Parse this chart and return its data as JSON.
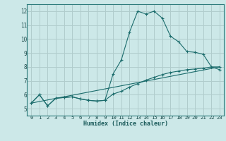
{
  "background_color": "#cce8e8",
  "grid_color": "#b0cccc",
  "line_color": "#1a6b6b",
  "xlabel": "Humidex (Indice chaleur)",
  "xlim": [
    -0.5,
    23.5
  ],
  "ylim": [
    4.5,
    12.5
  ],
  "xticks": [
    0,
    1,
    2,
    3,
    4,
    5,
    6,
    7,
    8,
    9,
    10,
    11,
    12,
    13,
    14,
    15,
    16,
    17,
    18,
    19,
    20,
    21,
    22,
    23
  ],
  "yticks": [
    5,
    6,
    7,
    8,
    9,
    10,
    11,
    12
  ],
  "series1_x": [
    0,
    1,
    2,
    3,
    4,
    5,
    6,
    7,
    8,
    9,
    10,
    11,
    12,
    13,
    14,
    15,
    16,
    17,
    18,
    19,
    20,
    21,
    22,
    23
  ],
  "series1_y": [
    5.4,
    6.0,
    5.2,
    5.75,
    5.8,
    5.85,
    5.7,
    5.6,
    5.55,
    5.6,
    7.5,
    8.5,
    10.5,
    12.0,
    11.8,
    12.0,
    11.5,
    10.2,
    9.8,
    9.1,
    9.05,
    8.9,
    8.0,
    7.8
  ],
  "series2_x": [
    0,
    1,
    2,
    3,
    4,
    5,
    6,
    7,
    8,
    9,
    10,
    11,
    12,
    13,
    14,
    15,
    16,
    17,
    18,
    19,
    20,
    21,
    22,
    23
  ],
  "series2_y": [
    5.4,
    6.0,
    5.2,
    5.75,
    5.8,
    5.85,
    5.7,
    5.6,
    5.55,
    5.6,
    6.05,
    6.25,
    6.55,
    6.8,
    7.05,
    7.25,
    7.45,
    7.6,
    7.7,
    7.8,
    7.85,
    7.9,
    8.0,
    8.0
  ],
  "series3_x": [
    0,
    23
  ],
  "series3_y": [
    5.4,
    8.0
  ]
}
